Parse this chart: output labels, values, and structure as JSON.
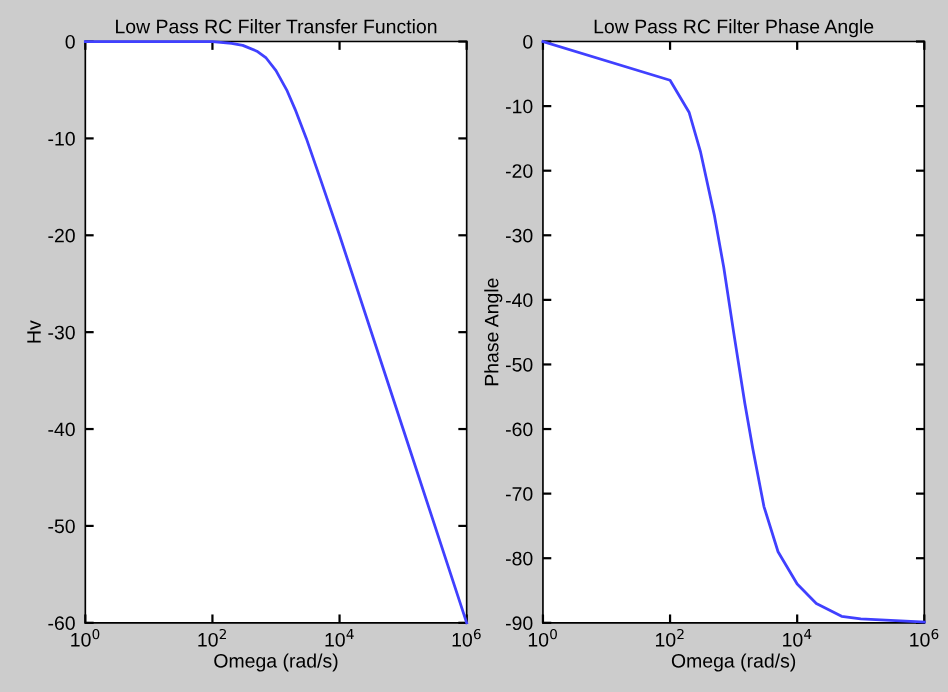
{
  "chart_data": [
    {
      "type": "line",
      "title": "Low Pass RC Filter Transfer Function",
      "xlabel": "Omega (rad/s)",
      "ylabel": "Hv",
      "log": "x",
      "grid": false,
      "legend": false,
      "xlim": [
        1,
        1000000
      ],
      "xticks": [
        {
          "value": 1,
          "label": "10$^{0}$"
        },
        {
          "value": 100,
          "label": "10$^{2}$"
        },
        {
          "value": 10000,
          "label": "10$^{4}$"
        },
        {
          "value": 1000000,
          "label": "10$^{6}$"
        }
      ],
      "ylim": [
        -60,
        0
      ],
      "yticks": [
        -60,
        -50,
        -40,
        -30,
        -20,
        -10,
        0
      ],
      "series": [
        {
          "color": "#4040ff",
          "x": [
            1,
            100,
            200,
            300,
            500,
            700,
            1000,
            1500,
            2000,
            3000,
            5000,
            10000,
            100000,
            1000000
          ],
          "values": [
            0,
            0,
            -0.2,
            -0.4,
            -1,
            -1.7,
            -3,
            -5.1,
            -7,
            -10,
            -14.2,
            -20,
            -40,
            -60
          ]
        }
      ]
    },
    {
      "type": "line",
      "title": "Low Pass RC Filter Phase Angle",
      "xlabel": "Omega (rad/s)",
      "ylabel": "Phase Angle",
      "log": "x",
      "grid": false,
      "legend": false,
      "xlim": [
        1,
        1000000
      ],
      "xticks": [
        {
          "value": 1,
          "label": "10$^{0}$"
        },
        {
          "value": 100,
          "label": "10$^{2}$"
        },
        {
          "value": 10000,
          "label": "10$^{4}$"
        },
        {
          "value": 1000000,
          "label": "10$^{6}$"
        }
      ],
      "ylim": [
        -90,
        0
      ],
      "yticks": [
        -90,
        -80,
        -70,
        -60,
        -50,
        -40,
        -30,
        -20,
        -10,
        0
      ],
      "series": [
        {
          "color": "#4040ff",
          "x": [
            1,
            100,
            200,
            300,
            500,
            700,
            1000,
            1500,
            2000,
            3000,
            5000,
            10000,
            20000,
            50000,
            100000,
            1000000
          ],
          "values": [
            0,
            -6,
            -11,
            -17,
            -27,
            -35,
            -45,
            -56,
            -63,
            -72,
            -79,
            -84,
            -87,
            -89,
            -89.4,
            -89.9
          ]
        }
      ]
    }
  ]
}
